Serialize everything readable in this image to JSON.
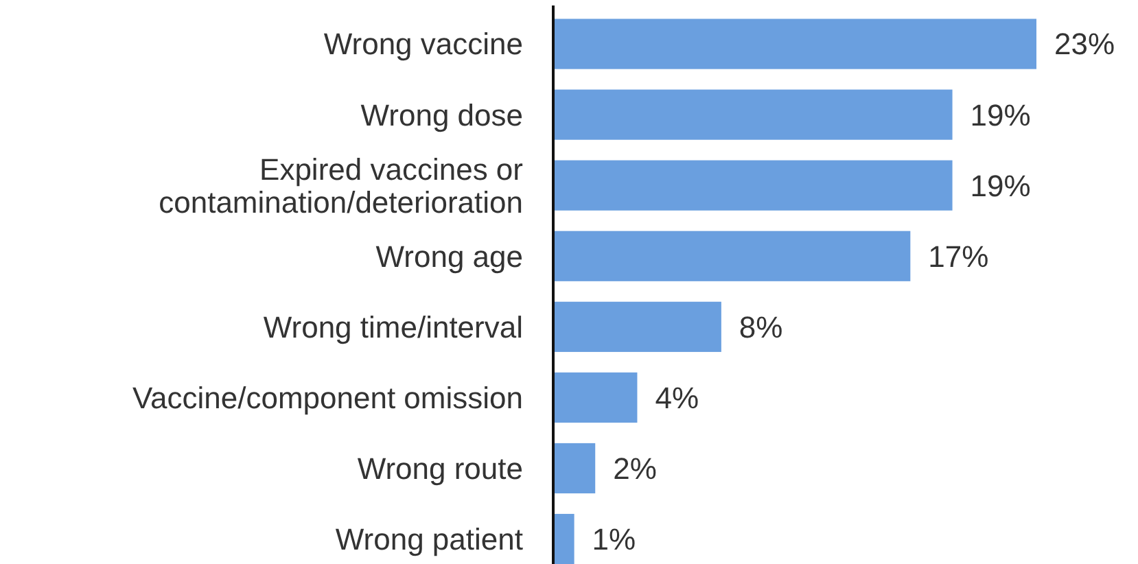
{
  "chart_data": {
    "type": "bar",
    "orientation": "horizontal",
    "relative": false,
    "categories": [
      "Wrong vaccine",
      "Wrong dose",
      "Expired vaccines or contamination/deterioration",
      "Wrong age",
      "Wrong time/interval",
      "Vaccine/component omission",
      "Wrong route",
      "Wrong patient"
    ],
    "values": [
      23,
      19,
      19,
      17,
      8,
      4,
      2,
      1
    ],
    "value_labels": [
      "23%",
      "19%",
      "19%",
      "17%",
      "8%",
      "4%",
      "2%",
      "1%"
    ],
    "color": "#6a9fdf"
  }
}
